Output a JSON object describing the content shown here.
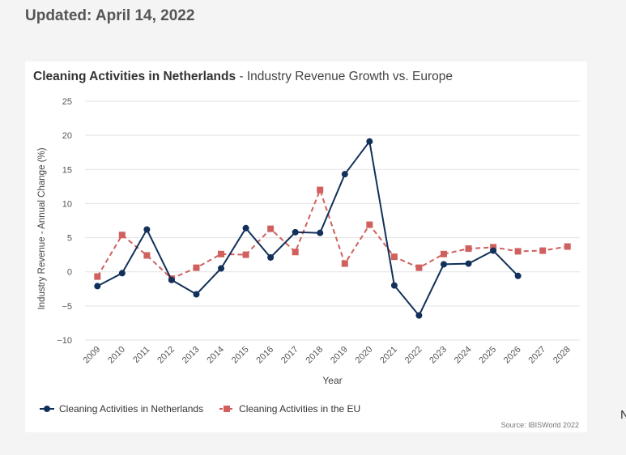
{
  "header": {
    "updated": "Updated: April 14, 2022"
  },
  "edge_text": "N",
  "chart_data": {
    "type": "line",
    "title": "Cleaning Activities in Netherlands",
    "subtitle": "- Industry Revenue Growth vs. Europe",
    "xlabel": "Year",
    "ylabel": "Industry Revenue - Annual Change (%)",
    "ylim": [
      -10,
      25
    ],
    "yticks": [
      25,
      20,
      15,
      10,
      5,
      0,
      -5,
      -10
    ],
    "ytick_labels": [
      "25",
      "20",
      "15",
      "10",
      "5",
      "0",
      "−5",
      "−10"
    ],
    "categories": [
      "2009",
      "2010",
      "2011",
      "2012",
      "2013",
      "2014",
      "2015",
      "2016",
      "2017",
      "2018",
      "2019",
      "2020",
      "2021",
      "2022",
      "2023",
      "2024",
      "2025",
      "2026",
      "2027",
      "2028"
    ],
    "grid": true,
    "legend_position": "bottom-left",
    "series": [
      {
        "name": "Cleaning Activities in Netherlands",
        "color": "#12305a",
        "marker": "circle",
        "dash": false,
        "values": [
          -2.1,
          -0.2,
          6.2,
          -1.2,
          -3.3,
          0.5,
          6.4,
          2.1,
          5.8,
          5.7,
          14.3,
          19.1,
          -2.0,
          -6.4,
          1.1,
          1.2,
          3.1,
          -0.6,
          null,
          null
        ]
      },
      {
        "name": "Cleaning Activities in the EU",
        "color": "#d0605e",
        "marker": "square",
        "dash": true,
        "values": [
          -0.7,
          5.4,
          2.4,
          -1.0,
          0.6,
          2.6,
          2.5,
          6.3,
          2.9,
          12.0,
          1.2,
          6.9,
          2.2,
          0.6,
          2.6,
          3.4,
          3.6,
          3.0,
          3.1,
          3.7
        ]
      }
    ],
    "source": "Source: IBISWorld 2022"
  }
}
